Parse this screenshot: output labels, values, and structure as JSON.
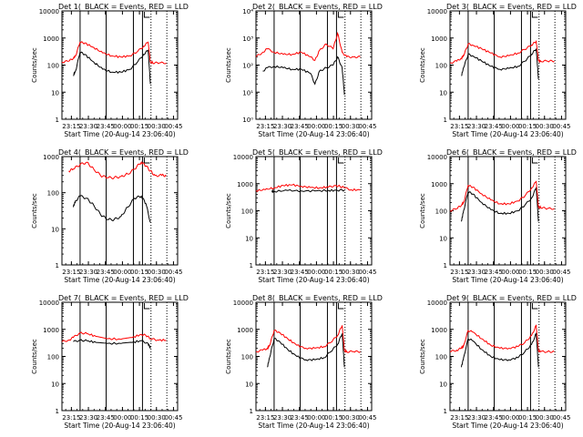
{
  "figure": {
    "start_time_label": "Start Time (20-Aug-14 23:06:40)",
    "ylabel": "Counts/sec",
    "x_ticks": [
      "23:15",
      "23:30",
      "23:45",
      "00:00",
      "00:15",
      "00:30",
      "00:45"
    ],
    "x_tick_minutes": [
      8.33,
      23.33,
      38.33,
      53.33,
      68.33,
      83.33,
      98.33
    ],
    "xlim_minutes_from_start": [
      0,
      102
    ],
    "colors": {
      "events": "#000000",
      "lld": "#ff0000",
      "axes": "#000000"
    },
    "solid_markers_minutes": [
      16,
      39,
      63,
      71
    ],
    "dotted_markers_minutes": [
      78.5,
      92.5
    ]
  },
  "chart_data": [
    {
      "type": "line",
      "title": "Det 1(_BLACK = Events, RED = LLD",
      "y_scale": "log",
      "ylim": [
        1,
        10000
      ],
      "y_ticks": [
        "1",
        "10",
        "100",
        "1000",
        "10000"
      ],
      "xlim_minutes": [
        0,
        102
      ],
      "series": [
        {
          "name": "Events",
          "color": "#000000",
          "x_minutes": [
            10,
            12,
            16,
            20,
            28,
            36,
            44,
            52,
            60,
            66,
            72,
            76,
            78
          ],
          "values": [
            40,
            60,
            300,
            250,
            130,
            70,
            55,
            55,
            70,
            120,
            250,
            350,
            20
          ]
        },
        {
          "name": "LLD",
          "color": "#ff0000",
          "x_minutes": [
            0,
            6,
            10,
            12,
            16,
            20,
            28,
            36,
            44,
            52,
            60,
            66,
            72,
            76,
            78,
            80,
            86,
            92
          ],
          "values": [
            130,
            140,
            180,
            220,
            700,
            650,
            450,
            280,
            220,
            200,
            220,
            300,
            500,
            700,
            130,
            120,
            120,
            120
          ]
        }
      ]
    },
    {
      "type": "line",
      "title": "Det 2(_BLACK = Events, RED = LLD",
      "y_scale": "log",
      "ylim": [
        1,
        10000
      ],
      "y_ticks": [
        "10⁰",
        "10¹",
        "10²",
        "10³",
        "10⁴"
      ],
      "xlim_minutes": [
        0,
        102
      ],
      "series": [
        {
          "name": "Events",
          "color": "#000000",
          "x_minutes": [
            6,
            10,
            16,
            24,
            32,
            40,
            48,
            52,
            56,
            62,
            68,
            72,
            76,
            78
          ],
          "values": [
            60,
            80,
            90,
            80,
            70,
            70,
            50,
            20,
            60,
            80,
            100,
            200,
            80,
            8
          ]
        },
        {
          "name": "LLD",
          "color": "#ff0000",
          "x_minutes": [
            0,
            6,
            10,
            16,
            24,
            32,
            40,
            48,
            52,
            56,
            62,
            68,
            72,
            76,
            80,
            86,
            92
          ],
          "values": [
            200,
            300,
            400,
            300,
            250,
            250,
            300,
            200,
            150,
            350,
            600,
            400,
            1500,
            300,
            200,
            200,
            200
          ]
        }
      ]
    },
    {
      "type": "line",
      "title": "Det 3(_BLACK = Events, RED = LLD",
      "y_scale": "log",
      "ylim": [
        1,
        10000
      ],
      "y_ticks": [
        "1",
        "10",
        "100",
        "1000",
        "10000"
      ],
      "xlim_minutes": [
        0,
        102
      ],
      "series": [
        {
          "name": "Events",
          "color": "#000000",
          "x_minutes": [
            10,
            12,
            16,
            20,
            28,
            36,
            44,
            52,
            60,
            66,
            72,
            76,
            78
          ],
          "values": [
            40,
            80,
            250,
            220,
            140,
            90,
            70,
            75,
            90,
            140,
            250,
            400,
            30
          ]
        },
        {
          "name": "LLD",
          "color": "#ff0000",
          "x_minutes": [
            0,
            6,
            10,
            12,
            16,
            20,
            28,
            36,
            44,
            52,
            60,
            66,
            72,
            76,
            78,
            80,
            86,
            92
          ],
          "values": [
            120,
            140,
            180,
            220,
            600,
            550,
            400,
            280,
            200,
            220,
            280,
            380,
            550,
            750,
            150,
            140,
            140,
            140
          ]
        }
      ]
    },
    {
      "type": "line",
      "title": "Det 4(_BLACK = Events, RED = LLD",
      "y_scale": "log",
      "ylim": [
        1,
        1000
      ],
      "y_ticks": [
        "1",
        "10",
        "100",
        "1000"
      ],
      "xlim_minutes": [
        0,
        102
      ],
      "series": [
        {
          "name": "Events",
          "color": "#000000",
          "x_minutes": [
            10,
            12,
            16,
            22,
            28,
            34,
            40,
            46,
            52,
            58,
            64,
            70,
            74,
            78
          ],
          "values": [
            40,
            60,
            80,
            70,
            45,
            25,
            18,
            18,
            22,
            40,
            70,
            80,
            50,
            15
          ]
        },
        {
          "name": "LLD",
          "color": "#ff0000",
          "x_minutes": [
            6,
            10,
            16,
            22,
            28,
            34,
            40,
            46,
            52,
            58,
            64,
            70,
            74,
            78,
            82,
            88,
            92
          ],
          "values": [
            400,
            450,
            600,
            700,
            450,
            300,
            260,
            260,
            280,
            330,
            450,
            700,
            550,
            400,
            300,
            300,
            300
          ]
        }
      ]
    },
    {
      "type": "line",
      "title": "Det 5(_BLACK = Events, RED = LLD",
      "y_scale": "log",
      "ylim": [
        1,
        10000
      ],
      "y_ticks": [
        "1",
        "10",
        "100",
        "1000",
        "10000"
      ],
      "xlim_minutes": [
        0,
        102
      ],
      "series": [
        {
          "name": "Events",
          "color": "#000000",
          "x_minutes": [
            14,
            16,
            28,
            40,
            52,
            64,
            72,
            78
          ],
          "values": [
            500,
            520,
            560,
            540,
            540,
            560,
            560,
            580
          ]
        },
        {
          "name": "LLD",
          "color": "#ff0000",
          "x_minutes": [
            0,
            8,
            16,
            24,
            32,
            40,
            48,
            56,
            64,
            70,
            74,
            78,
            84,
            92
          ],
          "values": [
            550,
            600,
            700,
            850,
            900,
            800,
            720,
            700,
            750,
            850,
            800,
            700,
            600,
            580
          ]
        }
      ]
    },
    {
      "type": "line",
      "title": "Det 6(_BLACK = Events, RED = LLD",
      "y_scale": "log",
      "ylim": [
        1,
        10000
      ],
      "y_ticks": [
        "1",
        "10",
        "100",
        "1000",
        "10000"
      ],
      "xlim_minutes": [
        0,
        102
      ],
      "series": [
        {
          "name": "Events",
          "color": "#000000",
          "x_minutes": [
            10,
            12,
            16,
            20,
            28,
            36,
            44,
            52,
            60,
            66,
            72,
            76,
            78
          ],
          "values": [
            40,
            100,
            500,
            420,
            200,
            110,
            80,
            80,
            100,
            160,
            300,
            700,
            40
          ]
        },
        {
          "name": "LLD",
          "color": "#ff0000",
          "x_minutes": [
            0,
            6,
            10,
            12,
            16,
            20,
            28,
            36,
            44,
            52,
            60,
            66,
            72,
            76,
            78,
            80,
            86,
            92
          ],
          "values": [
            100,
            120,
            160,
            200,
            850,
            750,
            420,
            250,
            180,
            180,
            230,
            350,
            700,
            1200,
            140,
            130,
            120,
            120
          ]
        }
      ]
    },
    {
      "type": "line",
      "title": "Det 7(_BLACK = Events, RED = LLD",
      "y_scale": "log",
      "ylim": [
        1,
        10000
      ],
      "y_ticks": [
        "1",
        "10",
        "100",
        "1000",
        "10000"
      ],
      "xlim_minutes": [
        0,
        102
      ],
      "series": [
        {
          "name": "Events",
          "color": "#000000",
          "x_minutes": [
            10,
            16,
            22,
            30,
            40,
            52,
            62,
            70,
            76,
            78
          ],
          "values": [
            350,
            400,
            380,
            330,
            300,
            300,
            330,
            380,
            300,
            200
          ]
        },
        {
          "name": "LLD",
          "color": "#ff0000",
          "x_minutes": [
            0,
            6,
            10,
            16,
            22,
            30,
            40,
            52,
            62,
            70,
            74,
            78,
            84,
            92
          ],
          "values": [
            350,
            400,
            500,
            750,
            700,
            550,
            450,
            430,
            500,
            650,
            600,
            450,
            400,
            400
          ]
        }
      ]
    },
    {
      "type": "line",
      "title": "Det 8(_BLACK = Events, RED = LLD",
      "y_scale": "log",
      "ylim": [
        1,
        10000
      ],
      "y_ticks": [
        "1",
        "10",
        "100",
        "1000",
        "10000"
      ],
      "xlim_minutes": [
        0,
        102
      ],
      "series": [
        {
          "name": "Events",
          "color": "#000000",
          "x_minutes": [
            10,
            12,
            16,
            20,
            28,
            36,
            44,
            52,
            60,
            66,
            72,
            76,
            78
          ],
          "values": [
            40,
            90,
            450,
            380,
            180,
            100,
            75,
            75,
            90,
            150,
            280,
            700,
            40
          ]
        },
        {
          "name": "LLD",
          "color": "#ff0000",
          "x_minutes": [
            0,
            6,
            10,
            12,
            16,
            20,
            28,
            36,
            44,
            52,
            60,
            66,
            72,
            76,
            78,
            80,
            86,
            92
          ],
          "values": [
            150,
            170,
            200,
            250,
            900,
            800,
            450,
            260,
            200,
            200,
            230,
            330,
            600,
            1400,
            160,
            150,
            150,
            150
          ]
        }
      ]
    },
    {
      "type": "line",
      "title": "Det 9(_BLACK = Events, RED = LLD",
      "y_scale": "log",
      "ylim": [
        1,
        10000
      ],
      "y_ticks": [
        "1",
        "10",
        "100",
        "1000",
        "10000"
      ],
      "xlim_minutes": [
        0,
        102
      ],
      "series": [
        {
          "name": "Events",
          "color": "#000000",
          "x_minutes": [
            10,
            12,
            16,
            20,
            28,
            36,
            44,
            52,
            60,
            66,
            72,
            76,
            78
          ],
          "values": [
            40,
            90,
            450,
            380,
            180,
            100,
            75,
            75,
            90,
            150,
            280,
            700,
            40
          ]
        },
        {
          "name": "LLD",
          "color": "#ff0000",
          "x_minutes": [
            0,
            6,
            10,
            12,
            16,
            20,
            28,
            36,
            44,
            52,
            60,
            66,
            72,
            76,
            78,
            80,
            86,
            92
          ],
          "values": [
            150,
            170,
            200,
            250,
            900,
            800,
            450,
            260,
            200,
            200,
            230,
            330,
            600,
            1400,
            160,
            150,
            150,
            150
          ]
        }
      ]
    }
  ]
}
